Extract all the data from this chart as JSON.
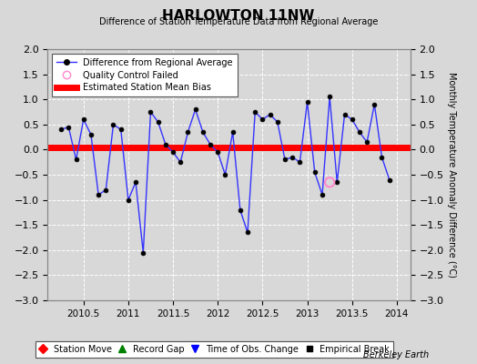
{
  "title": "HARLOWTON 11NW",
  "subtitle": "Difference of Station Temperature Data from Regional Average",
  "ylabel": "Monthly Temperature Anomaly Difference (°C)",
  "ylim": [
    -3,
    2
  ],
  "xlim": [
    2010.1,
    2014.15
  ],
  "xlabel_ticks": [
    2010.5,
    2011.0,
    2011.5,
    2012.0,
    2012.5,
    2013.0,
    2013.5,
    2014.0
  ],
  "xlabel_labels": [
    "2010.5",
    "2011",
    "2011.5",
    "2012",
    "2012.5",
    "2013",
    "2013.5",
    "2014"
  ],
  "yticks": [
    2.0,
    1.5,
    1.0,
    0.5,
    0.0,
    -0.5,
    -1.0,
    -1.5,
    -2.0,
    -2.5,
    -3.0
  ],
  "bias_y": 0.05,
  "background_color": "#d8d8d8",
  "plot_bg_color": "#d8d8d8",
  "grid_color": "#ffffff",
  "line_color": "#3333ff",
  "marker_color": "#000000",
  "bias_color": "#ff0000",
  "qc_color": "#ff88cc",
  "data_x": [
    2010.25,
    2010.333,
    2010.417,
    2010.5,
    2010.583,
    2010.667,
    2010.75,
    2010.833,
    2010.917,
    2011.0,
    2011.083,
    2011.167,
    2011.25,
    2011.333,
    2011.417,
    2011.5,
    2011.583,
    2011.667,
    2011.75,
    2011.833,
    2011.917,
    2012.0,
    2012.083,
    2012.167,
    2012.25,
    2012.333,
    2012.417,
    2012.5,
    2012.583,
    2012.667,
    2012.75,
    2012.833,
    2012.917,
    2013.0,
    2013.083,
    2013.167,
    2013.25,
    2013.333,
    2013.417,
    2013.5,
    2013.583,
    2013.667,
    2013.75,
    2013.833,
    2013.917
  ],
  "data_y": [
    0.4,
    0.45,
    -0.2,
    0.6,
    0.3,
    -0.9,
    -0.8,
    0.5,
    0.4,
    -1.0,
    -0.65,
    -2.05,
    0.75,
    0.55,
    0.1,
    -0.05,
    -0.25,
    0.35,
    0.8,
    0.35,
    0.1,
    -0.05,
    -0.5,
    0.35,
    -1.2,
    -1.65,
    0.75,
    0.6,
    0.7,
    0.55,
    -0.2,
    -0.15,
    -0.25,
    0.95,
    -0.45,
    -0.9,
    1.05,
    -0.65,
    0.7,
    0.6,
    0.35,
    0.15,
    0.9,
    -0.15,
    -0.6
  ],
  "qc_x": [
    2013.25
  ],
  "qc_y": [
    -0.65
  ],
  "watermark": "Berkeley Earth"
}
